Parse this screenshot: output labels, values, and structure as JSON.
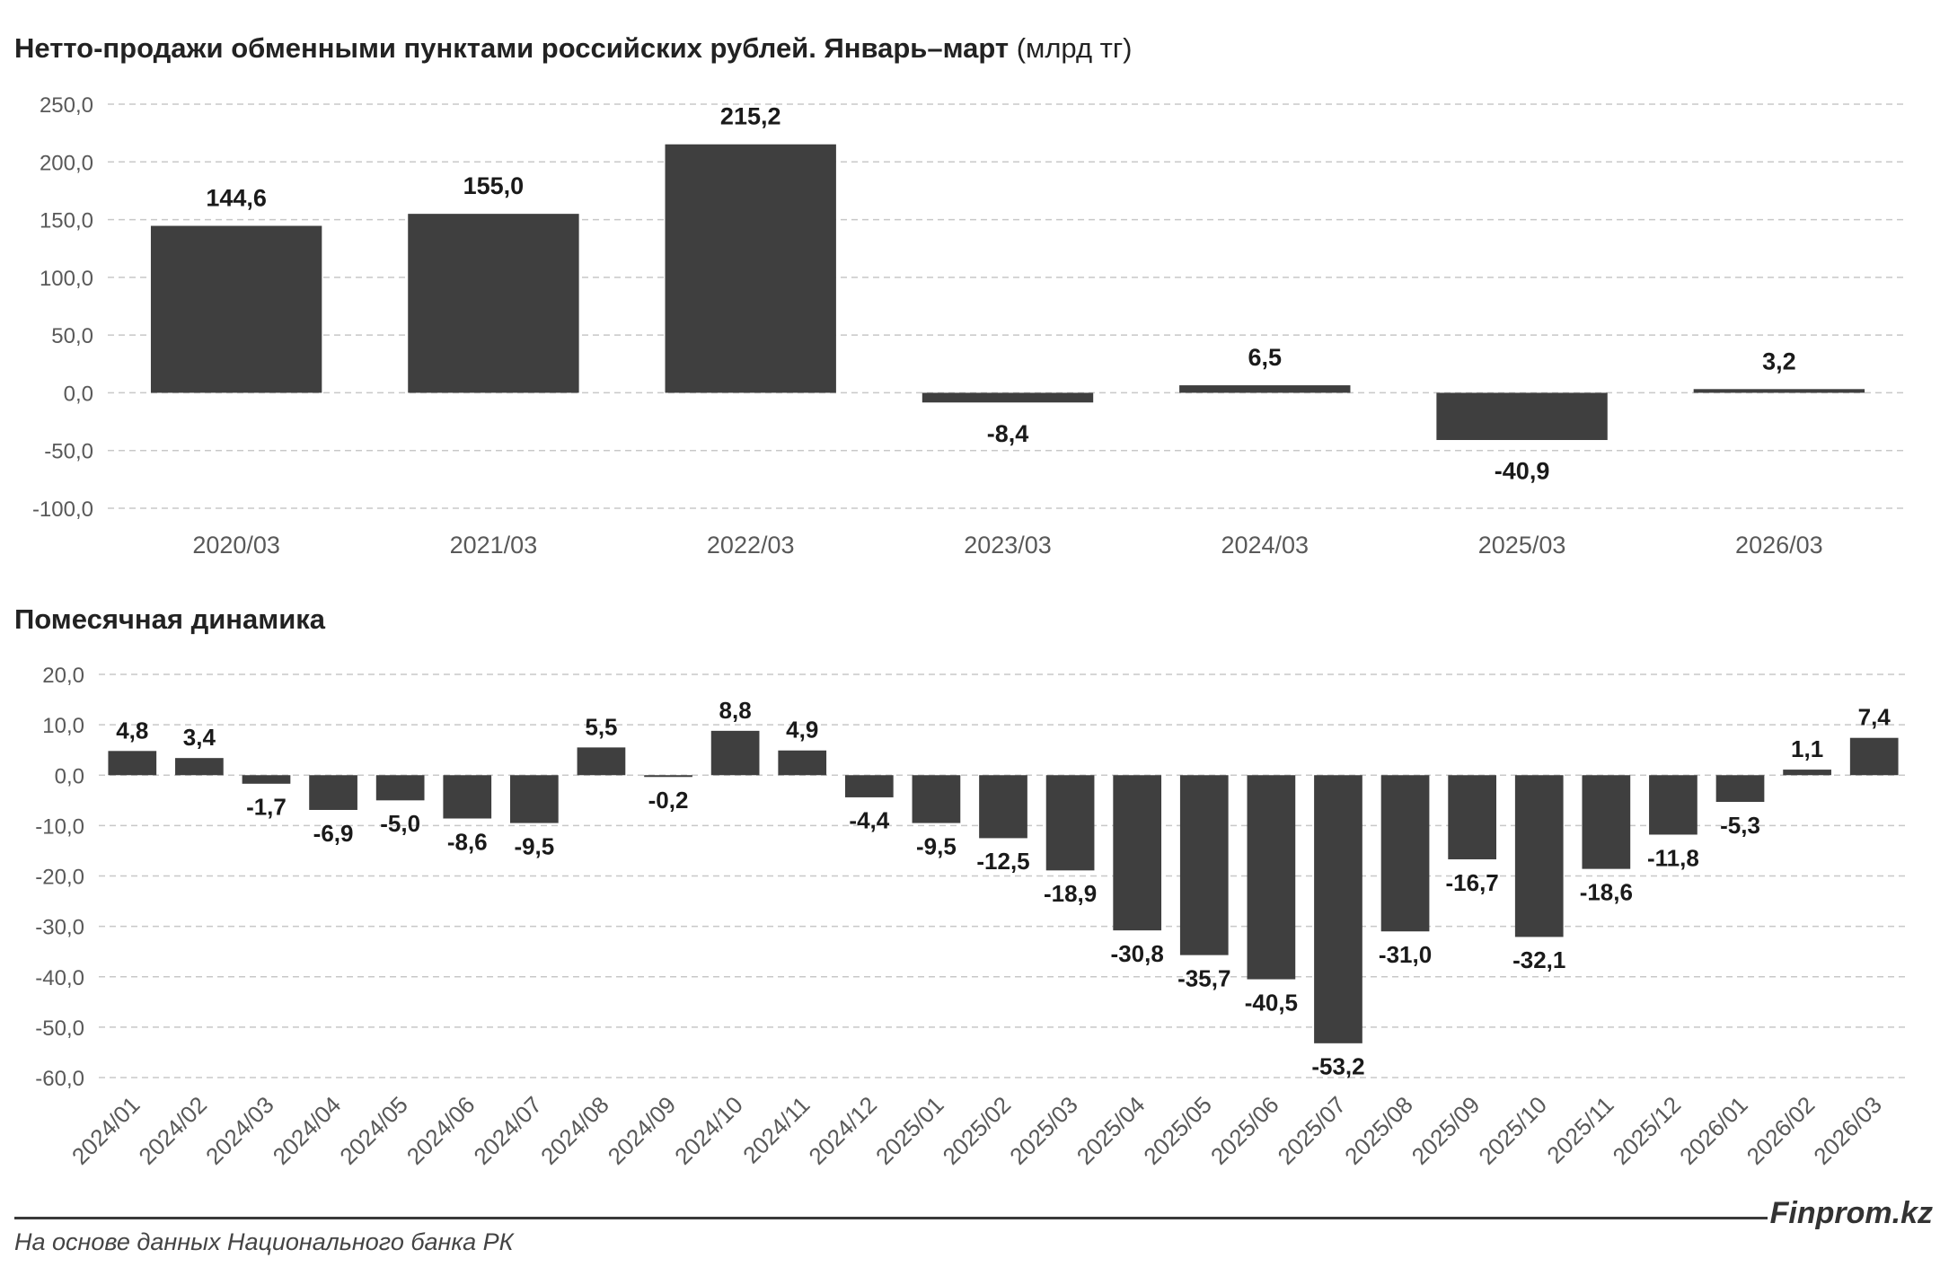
{
  "colors": {
    "bar": "#3f3f3f",
    "grid": "#c8c8c8",
    "axis_text": "#595959",
    "label_text": "#1a1a1a"
  },
  "chart1": {
    "title_bold": "Нетто-продажи обменными пунктами российских рублей. Январь–март",
    "title_normal": " (млрд тг)"
  },
  "chart2": {
    "title": "Помесячная динамика"
  },
  "footer": {
    "brand": "Finprom.kz",
    "source": "На основе данных Национального банка РК"
  },
  "chart_data": [
    {
      "type": "bar",
      "title": "Нетто-продажи обменными пунктами российских рублей. Январь–март (млрд тг)",
      "categories": [
        "2020/03",
        "2021/03",
        "2022/03",
        "2023/03",
        "2024/03",
        "2025/03",
        "2026/03"
      ],
      "values": [
        144.6,
        155.0,
        215.2,
        -8.4,
        6.5,
        -40.9,
        3.2
      ],
      "data_labels": [
        "144,6",
        "155,0",
        "215,2",
        "-8,4",
        "6,5",
        "-40,9",
        "3,2"
      ],
      "yticks": [
        "250,0",
        "200,0",
        "150,0",
        "100,0",
        "50,0",
        "0,0",
        "-50,0",
        "-100,0"
      ],
      "ylim": [
        -100,
        250
      ],
      "grid": true,
      "legend": "none"
    },
    {
      "type": "bar",
      "title": "Помесячная динамика",
      "categories": [
        "2024/01",
        "2024/02",
        "2024/03",
        "2024/04",
        "2024/05",
        "2024/06",
        "2024/07",
        "2024/08",
        "2024/09",
        "2024/10",
        "2024/11",
        "2024/12",
        "2025/01",
        "2025/02",
        "2025/03",
        "2025/04",
        "2025/05",
        "2025/06",
        "2025/07",
        "2025/08",
        "2025/09",
        "2025/10",
        "2025/11",
        "2025/12",
        "2026/01",
        "2026/02",
        "2026/03"
      ],
      "values": [
        4.8,
        3.4,
        -1.7,
        -6.9,
        -5.0,
        -8.6,
        -9.5,
        5.5,
        -0.2,
        8.8,
        4.9,
        -4.4,
        -9.5,
        -12.5,
        -18.9,
        -30.8,
        -35.7,
        -40.5,
        -53.2,
        -31.0,
        -16.7,
        -32.1,
        -18.6,
        -11.8,
        -5.3,
        1.1,
        7.4
      ],
      "data_labels": [
        "4,8",
        "3,4",
        "-1,7",
        "-6,9",
        "-5,0",
        "-8,6",
        "-9,5",
        "5,5",
        "-0,2",
        "8,8",
        "4,9",
        "-4,4",
        "-9,5",
        "-12,5",
        "-18,9",
        "-30,8",
        "-35,7",
        "-40,5",
        "-53,2",
        "-31,0",
        "-16,7",
        "-32,1",
        "-18,6",
        "-11,8",
        "-5,3",
        "1,1",
        "7,4"
      ],
      "yticks": [
        "20,0",
        "10,0",
        "0,0",
        "-10,0",
        "-20,0",
        "-30,0",
        "-40,0",
        "-50,0",
        "-60,0"
      ],
      "ylim": [
        -60,
        20
      ],
      "grid": true,
      "legend": "none"
    }
  ]
}
